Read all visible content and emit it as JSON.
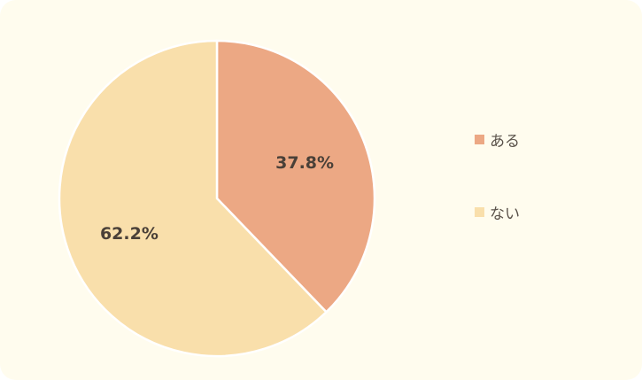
{
  "chart_data": {
    "type": "pie",
    "title": "",
    "slices": [
      {
        "label": "ある",
        "value": 37.8,
        "display": "37.8%",
        "color": "#eca884"
      },
      {
        "label": "ない",
        "value": 62.2,
        "display": "62.2%",
        "color": "#f9dfab"
      }
    ],
    "start_angle": "12 o'clock",
    "direction": "clockwise",
    "legend_position": "right"
  },
  "colors": {
    "background": "#fffcee",
    "slice_border": "#ffffff",
    "label_text": "#4a4038",
    "legend_text": "#5a524a"
  },
  "legend": {
    "items": [
      {
        "label": "ある",
        "color": "#eca884"
      },
      {
        "label": "ない",
        "color": "#f9dfab"
      }
    ]
  }
}
